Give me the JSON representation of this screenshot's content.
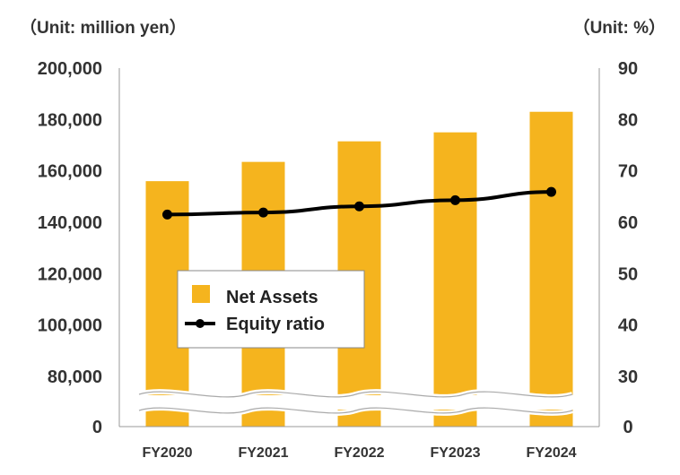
{
  "chart_data": {
    "type": "bar",
    "left_unit": "（Unit: million yen）",
    "right_unit": "（Unit: %）",
    "categories": [
      "FY2020",
      "FY2021",
      "FY2022",
      "FY2023",
      "FY2024"
    ],
    "series": [
      {
        "name": "Net Assets",
        "type": "bar",
        "axis": "left",
        "color": "#F5B41E",
        "values": [
          156000,
          163500,
          171500,
          175000,
          183000
        ]
      },
      {
        "name": "Equity ratio",
        "type": "line",
        "axis": "right",
        "color": "#000000",
        "values": [
          61.5,
          61.9,
          63.1,
          64.3,
          65.9
        ]
      }
    ],
    "left_axis": {
      "ylim": [
        80000,
        200000
      ],
      "ticks": [
        200000,
        180000,
        160000,
        140000,
        120000,
        100000,
        80000
      ],
      "tick_labels": [
        "200,000",
        "180,000",
        "160,000",
        "140,000",
        "120,000",
        "100,000",
        "80,000"
      ],
      "break_label": "0"
    },
    "right_axis": {
      "ylim": [
        30,
        90
      ],
      "ticks": [
        90,
        80,
        70,
        60,
        50,
        40,
        30
      ],
      "tick_labels": [
        "90",
        "80",
        "70",
        "60",
        "50",
        "40",
        "30"
      ],
      "break_label": "0"
    },
    "axis_break": true,
    "grid": false,
    "legend_position": "center-left"
  }
}
